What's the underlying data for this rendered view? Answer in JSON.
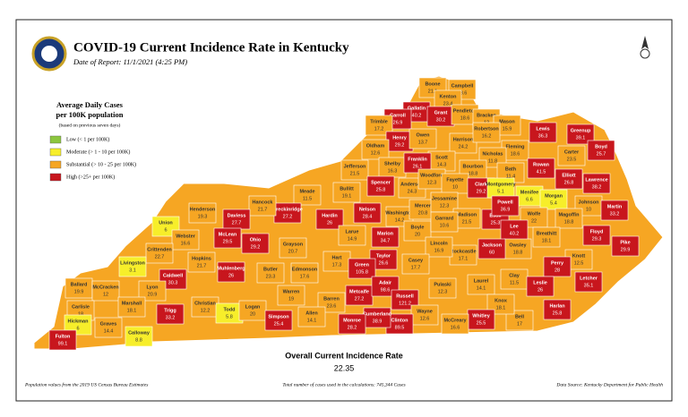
{
  "header": {
    "title": "COVID-19 Current Incidence Rate in Kentucky",
    "date": "Date of Report: 11/1/2021 (4:25 PM)"
  },
  "legend": {
    "title": "Average Daily Cases",
    "title2": "per 100K population",
    "note": "(based on previous seven days)",
    "items": [
      {
        "label": "Low (< 1 per 100K)",
        "color": "#8cc63f",
        "min": 0
      },
      {
        "label": "Moderate (> 1 - 10 per 100K)",
        "color": "#f7ee2a",
        "min": 1
      },
      {
        "label": "Substantial (> 10 - 25 per 100K)",
        "color": "#f6a623",
        "min": 10
      },
      {
        "label": "High (>25+ per 100K)",
        "color": "#c8161d",
        "min": 25
      }
    ]
  },
  "counties": [
    {
      "name": "Boone",
      "value": 21.1
    },
    {
      "name": "Campbell",
      "value": 18.6
    },
    {
      "name": "Kenton",
      "value": 23.4
    },
    {
      "name": "Gallatin",
      "value": 40.2
    },
    {
      "name": "Grant",
      "value": 30.2
    },
    {
      "name": "Pendleton",
      "value": 18.6
    },
    {
      "name": "Carroll",
      "value": 26.9
    },
    {
      "name": "Trimble",
      "value": 17.2
    },
    {
      "name": "Bracken",
      "value": 12
    },
    {
      "name": "Mason",
      "value": 15.9
    },
    {
      "name": "Lewis",
      "value": 36.3
    },
    {
      "name": "Greenup",
      "value": 39.1
    },
    {
      "name": "Boyd",
      "value": 25.7
    },
    {
      "name": "Henry",
      "value": 29.2
    },
    {
      "name": "Owen",
      "value": 13.7
    },
    {
      "name": "Harrison",
      "value": 24.2
    },
    {
      "name": "Robertson",
      "value": 16.2
    },
    {
      "name": "Fleming",
      "value": 18.6
    },
    {
      "name": "Oldham",
      "value": 12.6
    },
    {
      "name": "Scott",
      "value": 14.3
    },
    {
      "name": "Nicholas",
      "value": 11.8
    },
    {
      "name": "Rowan",
      "value": 41.5
    },
    {
      "name": "Carter",
      "value": 23.5
    },
    {
      "name": "Jefferson",
      "value": 21.5
    },
    {
      "name": "Shelby",
      "value": 16.3
    },
    {
      "name": "Franklin",
      "value": 26.1
    },
    {
      "name": "Bourbon",
      "value": 18.8
    },
    {
      "name": "Bath",
      "value": 11.4
    },
    {
      "name": "Elliott",
      "value": 26.8
    },
    {
      "name": "Lawrence",
      "value": 38.2
    },
    {
      "name": "Spencer",
      "value": 25.8
    },
    {
      "name": "Anderson",
      "value": 24.3
    },
    {
      "name": "Woodford",
      "value": 12.3
    },
    {
      "name": "Fayette",
      "value": 10
    },
    {
      "name": "Clark",
      "value": 29.2
    },
    {
      "name": "Montgomery",
      "value": 5.1
    },
    {
      "name": "Menifee",
      "value": 6.6
    },
    {
      "name": "Morgan",
      "value": 5.4
    },
    {
      "name": "Johnson",
      "value": 10
    },
    {
      "name": "Martin",
      "value": 33.2
    },
    {
      "name": "Meade",
      "value": 11.5
    },
    {
      "name": "Breckinridge",
      "value": 27.2
    },
    {
      "name": "Hardin",
      "value": 26
    },
    {
      "name": "Bullitt",
      "value": 19.1
    },
    {
      "name": "Nelson",
      "value": 28.4
    },
    {
      "name": "Washington",
      "value": 14.2
    },
    {
      "name": "Mercer",
      "value": 20.8
    },
    {
      "name": "Jessamine",
      "value": 12.3
    },
    {
      "name": "Madison",
      "value": 21.5
    },
    {
      "name": "Estill",
      "value": 25.3
    },
    {
      "name": "Powell",
      "value": 36.9
    },
    {
      "name": "Wolfe",
      "value": 22
    },
    {
      "name": "Magoffin",
      "value": 18.8
    },
    {
      "name": "Floyd",
      "value": 29.3
    },
    {
      "name": "Pike",
      "value": 29.9
    },
    {
      "name": "Boyle",
      "value": 20
    },
    {
      "name": "Garrard",
      "value": 10.6
    },
    {
      "name": "Lee",
      "value": 40.2
    },
    {
      "name": "Breathitt",
      "value": 18.1
    },
    {
      "name": "Knott",
      "value": 12.5
    },
    {
      "name": "Perry",
      "value": 28
    },
    {
      "name": "Letcher",
      "value": 35.1
    },
    {
      "name": "Owsley",
      "value": 18.8
    },
    {
      "name": "Jackson",
      "value": 60
    },
    {
      "name": "Rockcastle",
      "value": 17.1
    },
    {
      "name": "Lincoln",
      "value": 16.9
    },
    {
      "name": "Larue",
      "value": 14.9
    },
    {
      "name": "Marion",
      "value": 34.7
    },
    {
      "name": "Taylor",
      "value": 26.6
    },
    {
      "name": "Casey",
      "value": 17.7
    },
    {
      "name": "Hart",
      "value": 17.3
    },
    {
      "name": "Green",
      "value": 105.8
    },
    {
      "name": "Grayson",
      "value": 20.7
    },
    {
      "name": "Ohio",
      "value": 29.2
    },
    {
      "name": "Hancock",
      "value": 21.7
    },
    {
      "name": "Daviess",
      "value": 27.7
    },
    {
      "name": "Henderson",
      "value": 19.3
    },
    {
      "name": "Union",
      "value": 6
    },
    {
      "name": "Webster",
      "value": 16.6
    },
    {
      "name": "McLean",
      "value": 29.5
    },
    {
      "name": "Muhlenberg",
      "value": 26
    },
    {
      "name": "Hopkins",
      "value": 21.7
    },
    {
      "name": "Crittenden",
      "value": 22.7
    },
    {
      "name": "Livingston",
      "value": 3.1
    },
    {
      "name": "Caldwell",
      "value": 30.3
    },
    {
      "name": "Butler",
      "value": 23.3
    },
    {
      "name": "Edmonson",
      "value": 17.6
    },
    {
      "name": "Ballard",
      "value": 19.9
    },
    {
      "name": "McCracken",
      "value": 12
    },
    {
      "name": "Lyon",
      "value": 20.9
    },
    {
      "name": "Marshall",
      "value": 18.1
    },
    {
      "name": "Christian",
      "value": 12.2
    },
    {
      "name": "Todd",
      "value": 5.8
    },
    {
      "name": "Logan",
      "value": 20
    },
    {
      "name": "Warren",
      "value": 19
    },
    {
      "name": "Barren",
      "value": 23.6
    },
    {
      "name": "Metcalfe",
      "value": 27.2
    },
    {
      "name": "Adair",
      "value": 98.6
    },
    {
      "name": "Russell",
      "value": 121.2
    },
    {
      "name": "Pulaski",
      "value": 12.3
    },
    {
      "name": "Laurel",
      "value": 14.1
    },
    {
      "name": "Clay",
      "value": 11.5
    },
    {
      "name": "Leslie",
      "value": 26
    },
    {
      "name": "Harlan",
      "value": 25.8
    },
    {
      "name": "Bell",
      "value": 17
    },
    {
      "name": "Knox",
      "value": 18.1
    },
    {
      "name": "Whitley",
      "value": 25.5
    },
    {
      "name": "McCreary",
      "value": 16.6
    },
    {
      "name": "Wayne",
      "value": 12.6
    },
    {
      "name": "Clinton",
      "value": 89.5
    },
    {
      "name": "Cumberland",
      "value": 38.9
    },
    {
      "name": "Monroe",
      "value": 28.2
    },
    {
      "name": "Allen",
      "value": 14.1
    },
    {
      "name": "Simpson",
      "value": 25.4
    },
    {
      "name": "Trigg",
      "value": 33.2
    },
    {
      "name": "Calloway",
      "value": 8.8
    },
    {
      "name": "Graves",
      "value": 14.4
    },
    {
      "name": "Carlisle",
      "value": 18
    },
    {
      "name": "Hickman",
      "value": 6
    },
    {
      "name": "Fulton",
      "value": 99.1
    }
  ],
  "summary": {
    "label": "Overall Current Incidence Rate",
    "value": 22.35
  },
  "footer": {
    "left": "Population values from the 2019 US Census Bureau Estimates",
    "center": "Total number of cases used in the calculations: 745,344 Cases",
    "right": "Data Source: Kentucky Department for Public Health"
  }
}
